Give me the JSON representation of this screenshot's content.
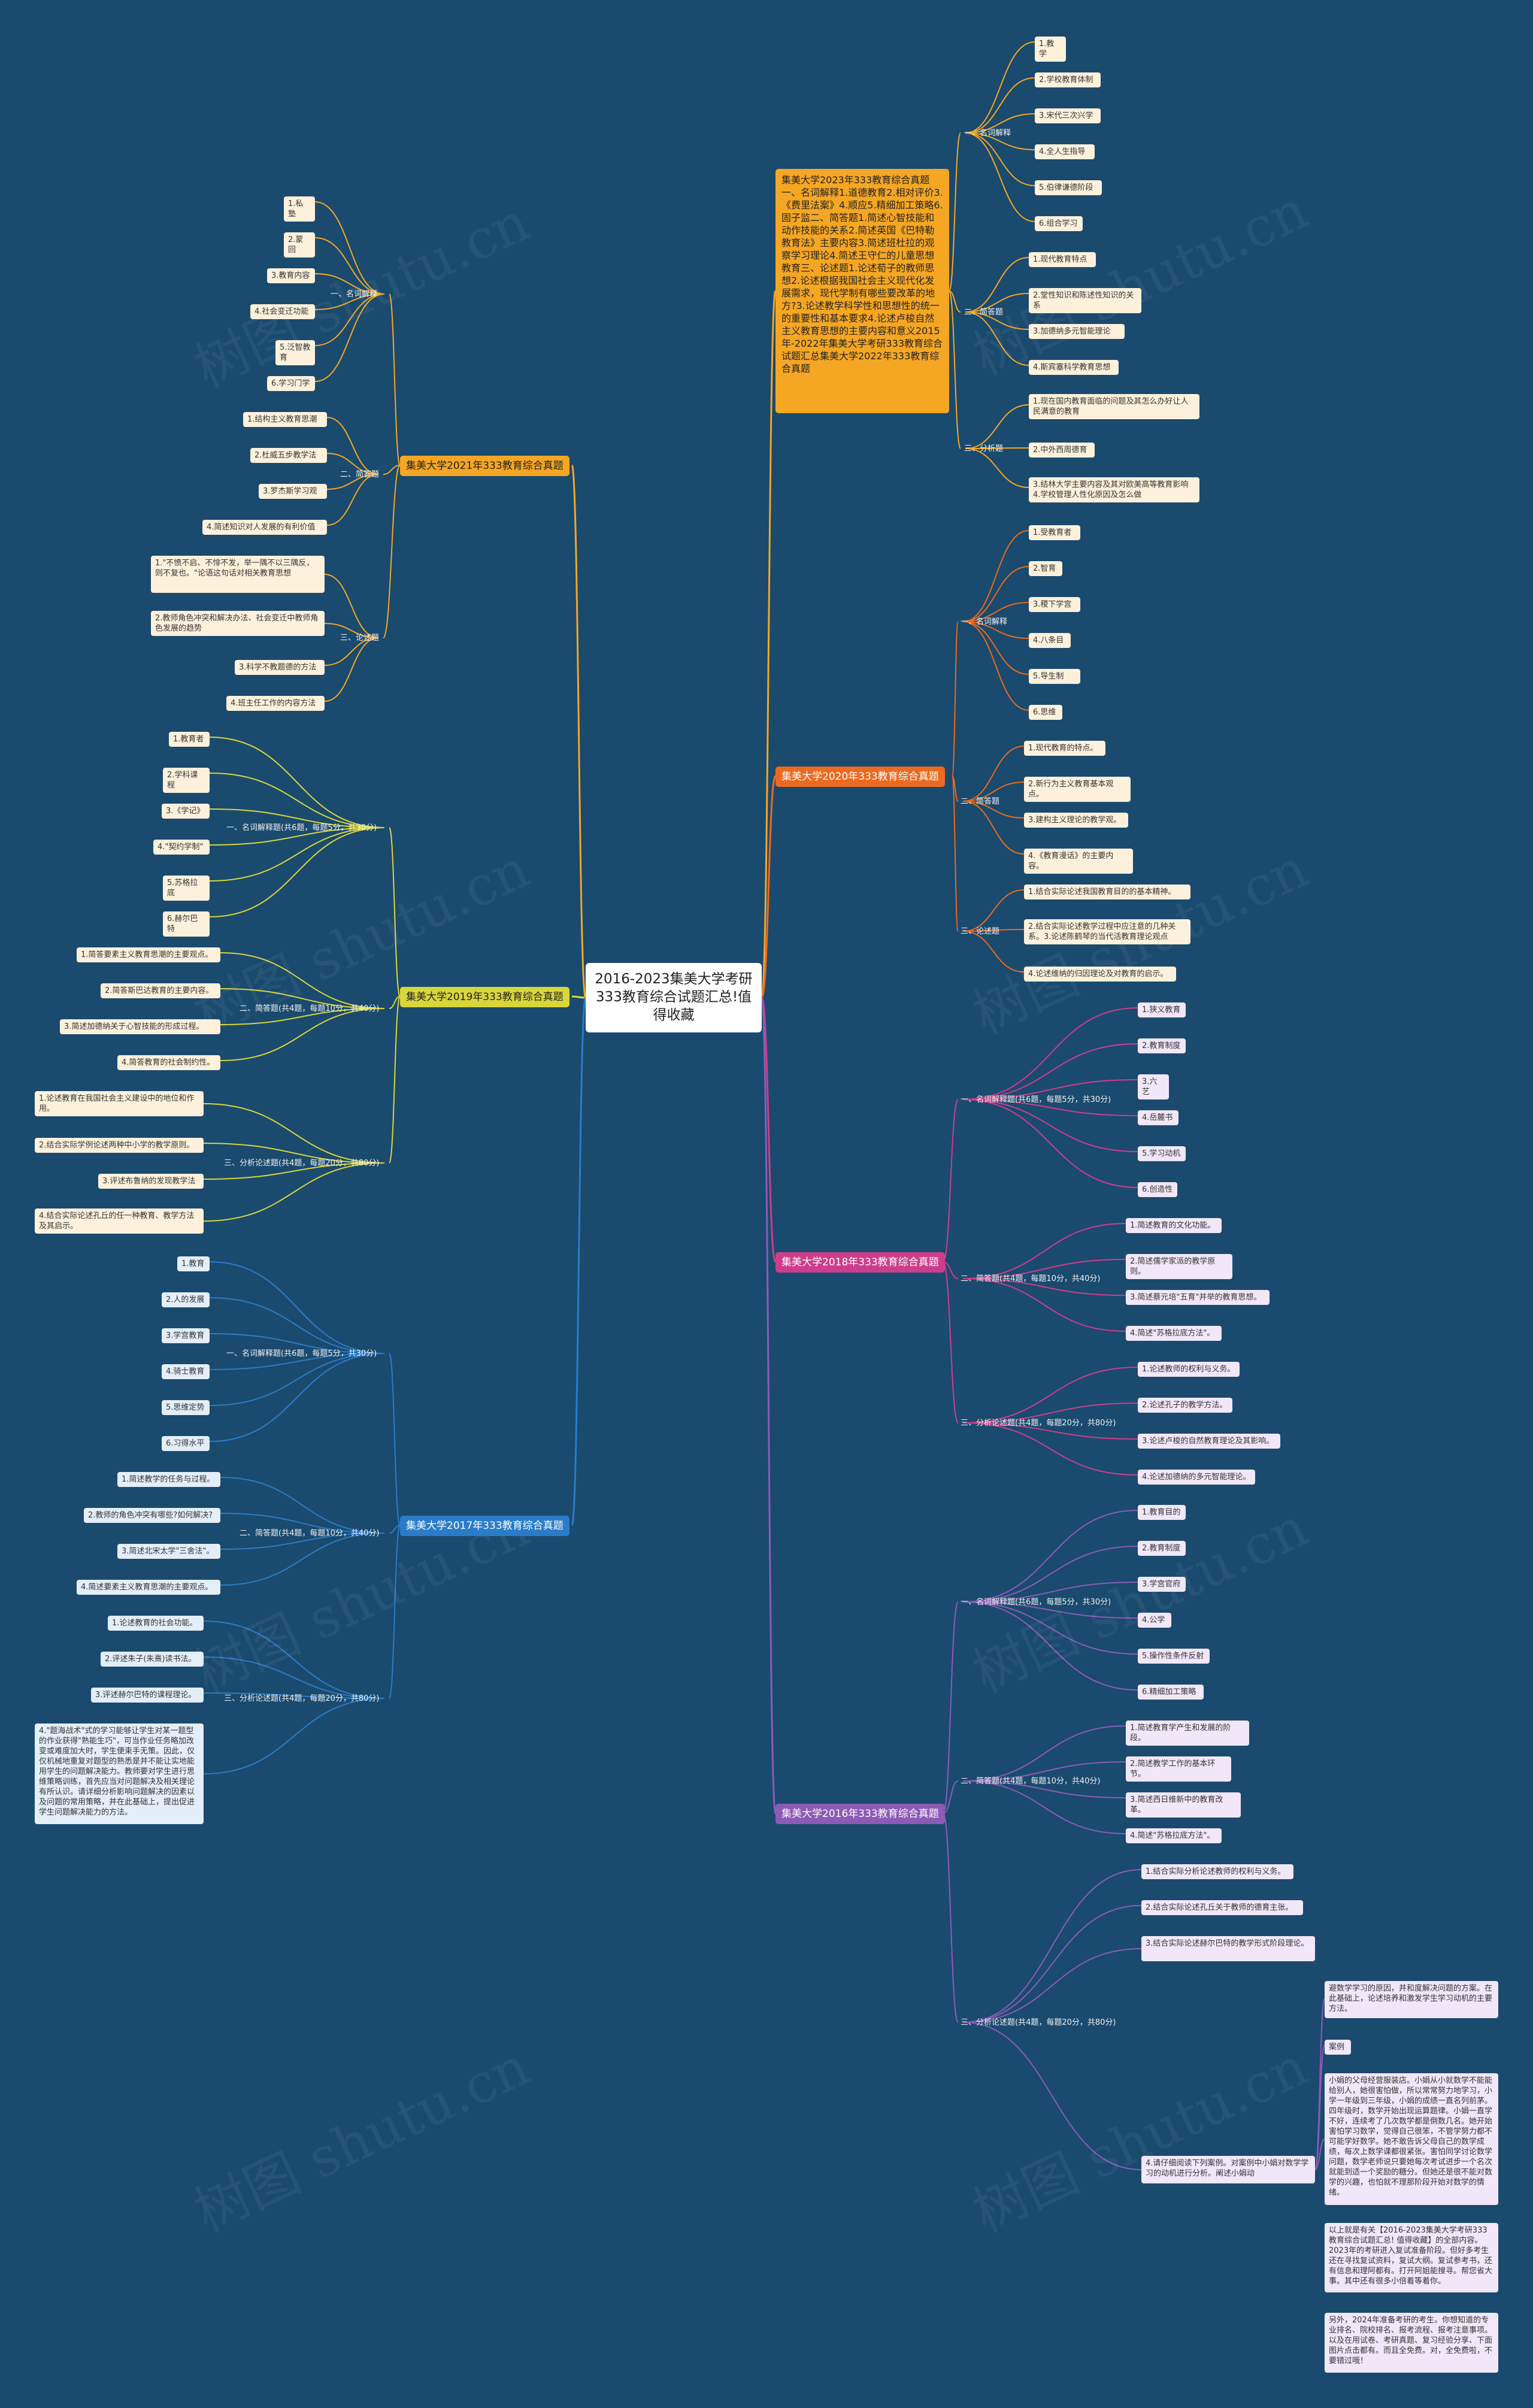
{
  "root": {
    "title": "2016-2023集美大学考研333教育综合试题汇总!值得收藏"
  },
  "watermark": "树图 shutu.cn",
  "colors": {
    "background": "#1a4a6e",
    "y2023": "#f5a623",
    "y2020": "#ec6a1f",
    "y2018": "#cd3d8b",
    "y2016": "#8c5bb6",
    "y2021": "#f5a623",
    "y2019": "#d9d63a",
    "y2017": "#2a7cc9"
  },
  "y2023": {
    "summary": "集美大学2023年333教育综合真题一、名词解释1.道德教育2.相对评价3.《费里法案》4.顺应5.精细加工策略6.固子监二、简答题1.简述心智技能和动作技能的关系2.简述英国《巴特勒教育法》主要内容3.简述班杜拉的观察学习理论4.简述王守仁的儿童思想教育三、论述题1.论述荀子的教师思想2.论述根据我国社会主义现代化发展需求，现代学制有哪些要改革的地方?3.论述教学科学性和思想性的统一的重要性和基本要求4.论述卢梭自然主义教育思想的主要内容和意义2015年-2022年集美大学考研333教育综合试题汇总集美大学2022年333教育综合真题",
    "s1": {
      "label": "一、名词解释",
      "items": [
        "1.教学",
        "2.学校教育体制",
        "3.宋代三次兴学",
        "4.全人生指导",
        "5.伯律谦德阶段",
        "6.组合学习"
      ]
    },
    "s2": {
      "label": "二、简答题",
      "items": [
        "1.现代教育特点",
        "2.堂性知识和陈述性知识的关系",
        "3.加德纳多元智能理论",
        "4.斯宾塞科学教育思想"
      ]
    },
    "s3": {
      "label": "三、分析题",
      "items": [
        "1.现在国内教育面临的问题及其怎么办好让人民满意的教育",
        "2.中外西周德育",
        "3.结林大学主要内容及其对欧美高等教育影响 4.学校管理人性化原因及怎么做"
      ]
    }
  },
  "y2020": {
    "title": "集美大学2020年333教育综合真题",
    "s1": {
      "label": "一、名词解释",
      "items": [
        "1.受教育者",
        "2.智育",
        "3.稷下学宫",
        "4.八条目",
        "5.导生制",
        "6.思维"
      ]
    },
    "s2": {
      "label": "二、简答题",
      "items": [
        "1.现代教育的特点。",
        "2.新行为主义教育基本观点。",
        "3.建构主义理论的教学观。",
        "4.《教育漫话》的主要内容。"
      ]
    },
    "s3": {
      "label": "三、论述题",
      "items": [
        "1.结合实际论述我国教育目的的基本精神。",
        "2.结合实际论述教学过程中应注意的几种关系。3.论述陈鹤琴的当代活教育理论观点",
        "4.论述维纳的归因理论及对教育的启示。"
      ]
    }
  },
  "y2018": {
    "title": "集美大学2018年333教育综合真题",
    "s1": {
      "label": "一、名词解释题(共6题，每题5分，共30分)",
      "items": [
        "1.狭义教育",
        "2.教育制度",
        "3.六艺",
        "4.岳麓书",
        "5.学习动机",
        "6.创造性"
      ]
    },
    "s2": {
      "label": "二、简答题(共4题，每题10分，共40分)",
      "items": [
        "1.简述教育的文化功能。",
        "2.简述儒学家派的教学原则。",
        "3.简述蔡元培\"五育\"并举的教育思想。",
        "4.简述\"苏格拉底方法\"。"
      ]
    },
    "s3": {
      "label": "三、分析论述题(共4题，每题20分，共80分)",
      "items": [
        "1.论述教师的权利与义务。",
        "2.论述孔子的教学方法。",
        "3.论述卢梭的自然教育理论及其影响。",
        "4.论述加德纳的多元智能理论。"
      ]
    }
  },
  "y2016": {
    "title": "集美大学2016年333教育综合真题",
    "s1": {
      "label": "一、名词解释题(共6题，每题5分，共30分)",
      "items": [
        "1.教育目的",
        "2.教育制度",
        "3.学宫官府",
        "4.公学",
        "5.操作性条件反射",
        "6.精细加工策略"
      ]
    },
    "s2": {
      "label": "二、简答题(共4题，每题10分，共40分)",
      "items": [
        "1.简述教育学产生和发展的阶段。",
        "2.简述教学工作的基本环节。",
        "3.简述西日维新中的教育改革。",
        "4.简述\"苏格拉底方法\"。"
      ]
    },
    "s3": {
      "label": "三、分析论述题(共4题，每题20分，共80分)",
      "items": [
        "1.结合实际分析论述教师的权利与义务。",
        "2.结合实际论述孔丘关于教师的德育主张。",
        "3.结合实际论述赫尔巴特的教学形式阶段理论。",
        "4.请仔细阅读下列案例。对案例中小娟对数学学习的动机进行分析。阐述小娟动"
      ]
    },
    "case": {
      "intro": "避数学学习的原因，并和度解决问题的方案。在此基础上，论述培养和激发学生学习动机的主要方法。",
      "label": "案例",
      "story": "小娟的父母经营服装店。小娟从小就数学不能能给别人，她很害怕做，所以常常努力地学习，小学一年级到三年级，小娟的成绩一直名列前茅。四年级时，数学开始出现运算题律。小娟一直学不好，连续考了几次数学都是倒数几名。她开始害怕学习数学，觉得自己很笨，不管学努力都不可能学好数学。她不敢告诉父母自己的数学成绩，每次上数学课都很紧张。害怕同学讨论数学问题，数学老师说只要她每次考试进步一个名次就能到适一个奖励的糖分。但她还是很不能对数学的兴趣，也怕就不理那阶段开始对数学的情绪。"
    }
  },
  "notes": {
    "n1": "以上就是有关【2016-2023集美大学考研333教育综合试题汇总! 值得收藏】的全部内容。2023年的考研进入复试准备阶段。但好多考生还在寻找复试资料，复试大纲。复试参考书，还有信息和理阿都有。打开阿姐能搜寻。帮您省大事。其中还有很多小倍着等着你。",
    "n2": "另外，2024年准备考研的考生。你想知道的专业排名、院校排名、报考流程、报考注意事项。以及在用试卷、考研真题、复习经验分享、下面图片点击都有。而且全免费。对，全免费啦，不要错过哦！"
  },
  "y2021": {
    "title": "集美大学2021年333教育综合真题",
    "s1": {
      "label": "一、名词解释",
      "items": [
        "1.私塾",
        "2.蒙回",
        "3.教育内容",
        "4.社会变迁功能",
        "5.泛智教育",
        "6.学习门学"
      ]
    },
    "s2": {
      "label": "二、简答题",
      "items": [
        "1.结构主义教育思潮",
        "2.杜威五步教学法",
        "3.罗杰斯学习观",
        "4.简述知识对人发展的有利价值"
      ]
    },
    "s3": {
      "label": "三、论述题",
      "items": [
        "1.\"不愤不启、不悱不发，举一隅不以三隅反，则不复也。\"论语这句话对相关教育思想",
        "2.教师角色冲突和解决办法、社会变迁中教师角色发展的趋势",
        "3.科学不教题德的方法",
        "4.班主任工作的内容方法"
      ]
    }
  },
  "y2019": {
    "title": "集美大学2019年333教育综合真题",
    "s1": {
      "label": "一、名词解释题(共6题，每题5分，共30分)",
      "items": [
        "1.教育者",
        "2.学科课程",
        "3.《学记》",
        "4.\"契约学制\"",
        "5.苏格拉底",
        "6.赫尔巴特"
      ]
    },
    "s2": {
      "label": "二、简答题(共4题，每题10分，共40分)",
      "items": [
        "1.简答要素主义教育思潮的主要观点。",
        "2.简答斯巴达教育的主要内容。",
        "3.简述加德纳关于心智技能的形成过程。",
        "4.简答教育的社会制约性。"
      ]
    },
    "s3": {
      "label": "三、分析论述题(共4题，每题20分，共80分)",
      "items": [
        "1.论述教育在我国社会主义建设中的地位和作用。",
        "2.结合实际学例论述两种中小学的教学原则。",
        "3.评述布鲁纳的发现教学法",
        "4.结合实际论述孔丘的任一种教育、教学方法及其启示。"
      ]
    }
  },
  "y2017": {
    "title": "集美大学2017年333教育综合真题",
    "s1": {
      "label": "一、名词解释题(共6题，每题5分，共30分)",
      "items": [
        "1.教育",
        "2.人的发展",
        "3.学宫教育",
        "4.骑士教育",
        "5.思维定势",
        "6.习得水平"
      ]
    },
    "s2": {
      "label": "二、简答题(共4题，每题10分，共40分)",
      "items": [
        "1.简述教学的任务与过程。",
        "2.教师的角色冲突有哪些?如何解决?",
        "3.简述北宋太学\"三舍法\"。",
        "4.简述要素主义教育思潮的主要观点。"
      ]
    },
    "s3": {
      "label": "三、分析论述题(共4题，每题20分，共80分)",
      "items": [
        "1.论述教育的社会功能。",
        "2.评述朱子(朱熹)读书法。",
        "3.评述赫尔巴特的课程理论。",
        "4.\"题海战术\"式的学习能够让学生对某一题型的作业获得\"熟能生巧\"，可当作业任务略加改变或难度加大时，学生便束手无策。因此，仅仅机械地重复对题型的熟悉是并不能让实地能用学生的问题解决能力。教师要对学生进行思维策略训练，首先应当对问题解决及相关理论有所认识。请详细分析影响问题解决的因素以及问题的常用策略，并在此基础上，提出促进学生问题解决能力的方法。"
      ]
    }
  }
}
